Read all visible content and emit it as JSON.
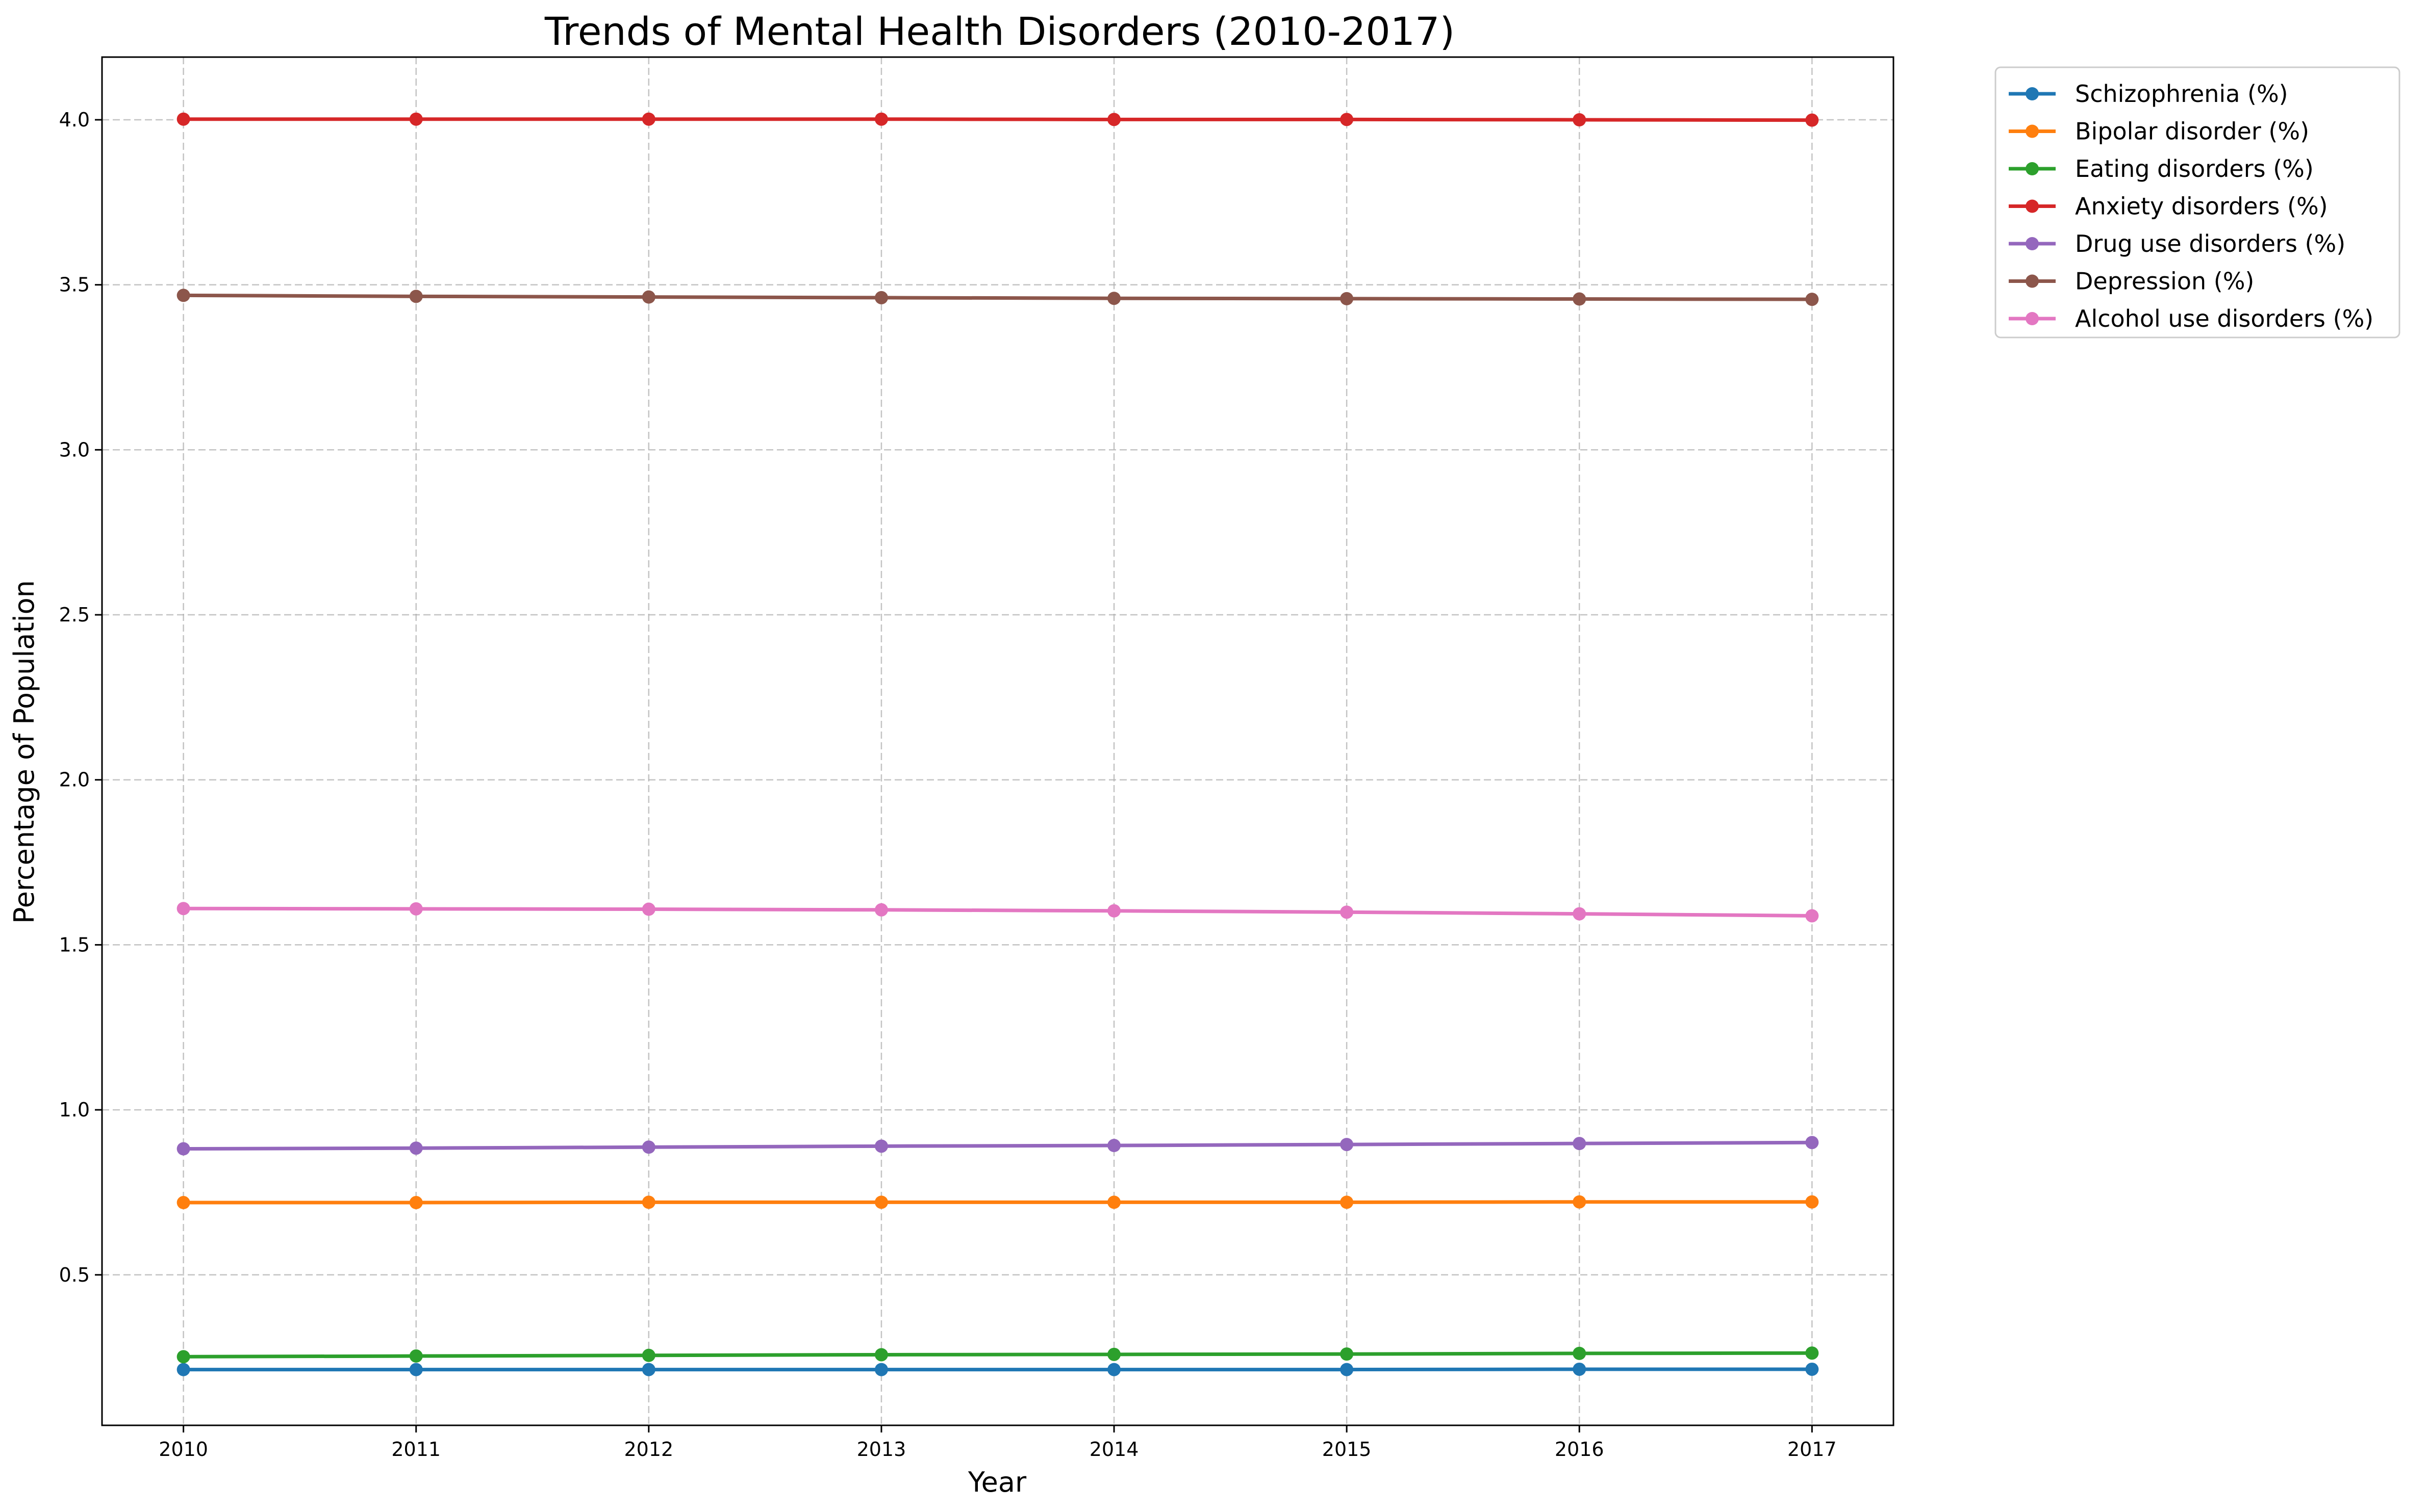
{
  "chart_data": {
    "type": "line",
    "title": "Trends of Mental Health Disorders (2010-2017)",
    "xlabel": "Year",
    "ylabel": "Percentage of Population",
    "x": [
      2010,
      2011,
      2012,
      2013,
      2014,
      2015,
      2016,
      2017
    ],
    "x_ticks": [
      "2010",
      "2011",
      "2012",
      "2013",
      "2014",
      "2015",
      "2016",
      "2017"
    ],
    "xlim": [
      2009.65,
      2017.35
    ],
    "ylim": [
      0.044,
      4.19
    ],
    "y_ticks": [
      "0.5",
      "1.0",
      "1.5",
      "2.0",
      "2.5",
      "3.0",
      "3.5",
      "4.0"
    ],
    "grid": true,
    "legend_position": "outside upper right",
    "markers": true,
    "series": [
      {
        "name": "Schizophrenia (%)",
        "color": "#1f77b4",
        "values": [
          0.213,
          0.213,
          0.213,
          0.213,
          0.213,
          0.213,
          0.214,
          0.214
        ]
      },
      {
        "name": "Bipolar disorder (%)",
        "color": "#ff7f0e",
        "values": [
          0.719,
          0.719,
          0.72,
          0.72,
          0.72,
          0.72,
          0.721,
          0.721
        ]
      },
      {
        "name": "Eating disorders (%)",
        "color": "#2ca02c",
        "values": [
          0.252,
          0.254,
          0.256,
          0.258,
          0.259,
          0.26,
          0.262,
          0.263
        ]
      },
      {
        "name": "Anxiety disorders (%)",
        "color": "#d62728",
        "values": [
          4.002,
          4.002,
          4.002,
          4.002,
          4.001,
          4.001,
          4.0,
          3.999
        ]
      },
      {
        "name": "Drug use disorders (%)",
        "color": "#9467bd",
        "values": [
          0.882,
          0.884,
          0.887,
          0.89,
          0.892,
          0.895,
          0.898,
          0.901
        ]
      },
      {
        "name": "Depression (%)",
        "color": "#8c564b",
        "values": [
          3.468,
          3.465,
          3.463,
          3.461,
          3.459,
          3.458,
          3.457,
          3.456
        ]
      },
      {
        "name": "Alcohol use disorders (%)",
        "color": "#e377c2",
        "values": [
          1.61,
          1.609,
          1.608,
          1.606,
          1.603,
          1.599,
          1.594,
          1.588
        ]
      }
    ]
  }
}
